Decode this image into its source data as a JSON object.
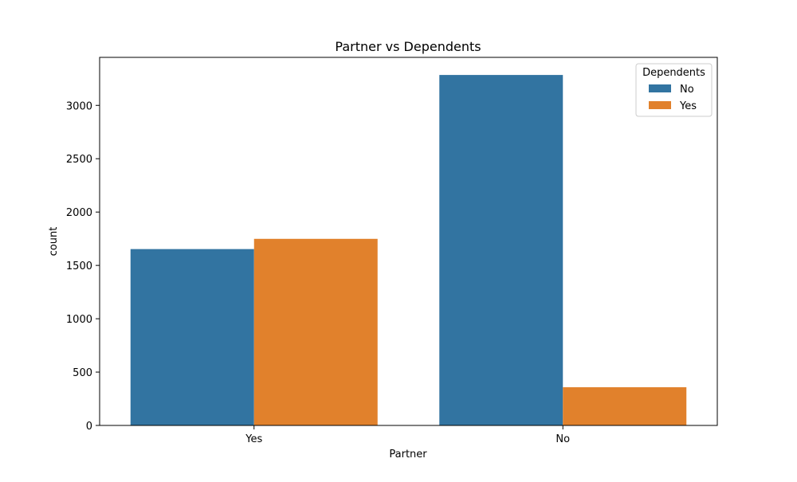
{
  "chart_data": {
    "type": "bar",
    "title": "Partner vs Dependents",
    "xlabel": "Partner",
    "ylabel": "count",
    "categories": [
      "Yes",
      "No"
    ],
    "series": [
      {
        "name": "No",
        "color": "#3274a1",
        "values": [
          1653,
          3285
        ]
      },
      {
        "name": "Yes",
        "color": "#e1812c",
        "values": [
          1749,
          358
        ]
      }
    ],
    "ylim": [
      0,
      3450
    ],
    "yticks": [
      0,
      500,
      1000,
      1500,
      2000,
      2500,
      3000
    ],
    "grid": false,
    "legend": {
      "title": "Dependents",
      "placement": "top-right"
    }
  }
}
